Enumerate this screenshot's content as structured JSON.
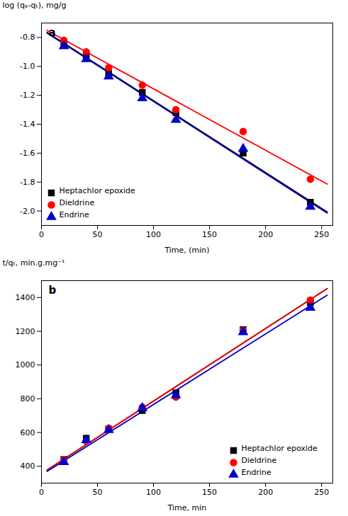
{
  "chart_data": [
    {
      "type": "scatter",
      "xlabel": "Time, (min)",
      "ylabel": "log (qₑ-qₜ), mg/g",
      "annotations": [
        "a"
      ],
      "xlim": [
        0,
        260
      ],
      "ylim": [
        -2.1,
        -0.7
      ],
      "xticks": [
        0,
        50,
        100,
        150,
        200,
        250
      ],
      "yticks": [
        {
          "value": -2.0,
          "label": "-2.0"
        },
        {
          "value": -1.8,
          "label": "-1.8"
        },
        {
          "value": -1.6,
          "label": "-1.6"
        },
        {
          "value": -1.4,
          "label": "-1.4"
        },
        {
          "value": -1.2,
          "label": "-1.2"
        },
        {
          "value": -1.0,
          "label": "-1.0"
        },
        {
          "value": -0.8,
          "label": "-0.8"
        }
      ],
      "legend": "lower left",
      "series": [
        {
          "name": "Heptachlor epoxide",
          "color": "#000000",
          "marker": "square",
          "x": [
            20,
            40,
            60,
            90,
            120,
            180,
            240
          ],
          "values": [
            -0.84,
            -0.93,
            -1.05,
            -1.18,
            -1.32,
            -1.6,
            -1.94
          ],
          "fit": {
            "x": [
              5,
              255
            ],
            "values": [
              -0.76485,
              -2.00735
            ]
          }
        },
        {
          "name": "Dieldrine",
          "color": "#ff0000",
          "marker": "circle",
          "x": [
            20,
            40,
            60,
            90,
            120,
            180,
            240
          ],
          "values": [
            -0.82,
            -0.9,
            -1.01,
            -1.13,
            -1.3,
            -1.45,
            -1.78
          ],
          "fit": {
            "x": [
              5,
              255
            ],
            "values": [
              -0.75125,
              -1.81375
            ]
          }
        },
        {
          "name": "Endrine",
          "color": "#0000cc",
          "marker": "triangle",
          "x": [
            20,
            40,
            60,
            90,
            120,
            180,
            240
          ],
          "values": [
            -0.86,
            -0.95,
            -1.07,
            -1.22,
            -1.37,
            -1.57,
            -1.97
          ],
          "fit": {
            "x": [
              5,
              255
            ],
            "values": [
              -0.7699,
              -2.0149
            ]
          }
        }
      ]
    },
    {
      "type": "scatter",
      "xlabel": "Time, min",
      "ylabel": "t/qₜ, min.g.mg⁻¹",
      "annotations": [
        "b"
      ],
      "xlim": [
        0,
        260
      ],
      "ylim": [
        300,
        1500
      ],
      "xticks": [
        0,
        50,
        100,
        150,
        200,
        250
      ],
      "yticks": [
        400,
        600,
        800,
        1000,
        1200,
        1400
      ],
      "legend": "lower right",
      "series": [
        {
          "name": "Heptachlor epoxide",
          "color": "#000000",
          "marker": "square",
          "x": [
            20,
            40,
            60,
            90,
            120,
            180,
            240
          ],
          "values": [
            440,
            565,
            620,
            730,
            835,
            1210,
            1370
          ],
          "fit": {
            "x": [
              5,
              255
            ],
            "values": [
              377.5,
              1452.5
            ]
          }
        },
        {
          "name": "Dieldrine",
          "color": "#ff0000",
          "marker": "circle",
          "x": [
            20,
            40,
            60,
            90,
            120,
            180,
            240
          ],
          "values": [
            435,
            550,
            625,
            750,
            810,
            1205,
            1385
          ],
          "fit": {
            "x": [
              5,
              255
            ],
            "values": [
              377.5,
              1452.5
            ]
          }
        },
        {
          "name": "Endrine",
          "color": "#0000cc",
          "marker": "triangle",
          "x": [
            20,
            40,
            60,
            90,
            120,
            180,
            240
          ],
          "values": [
            425,
            555,
            615,
            745,
            820,
            1195,
            1340
          ],
          "fit": {
            "x": [
              5,
              255
            ],
            "values": [
              368.9,
              1413.9
            ]
          }
        }
      ]
    }
  ]
}
